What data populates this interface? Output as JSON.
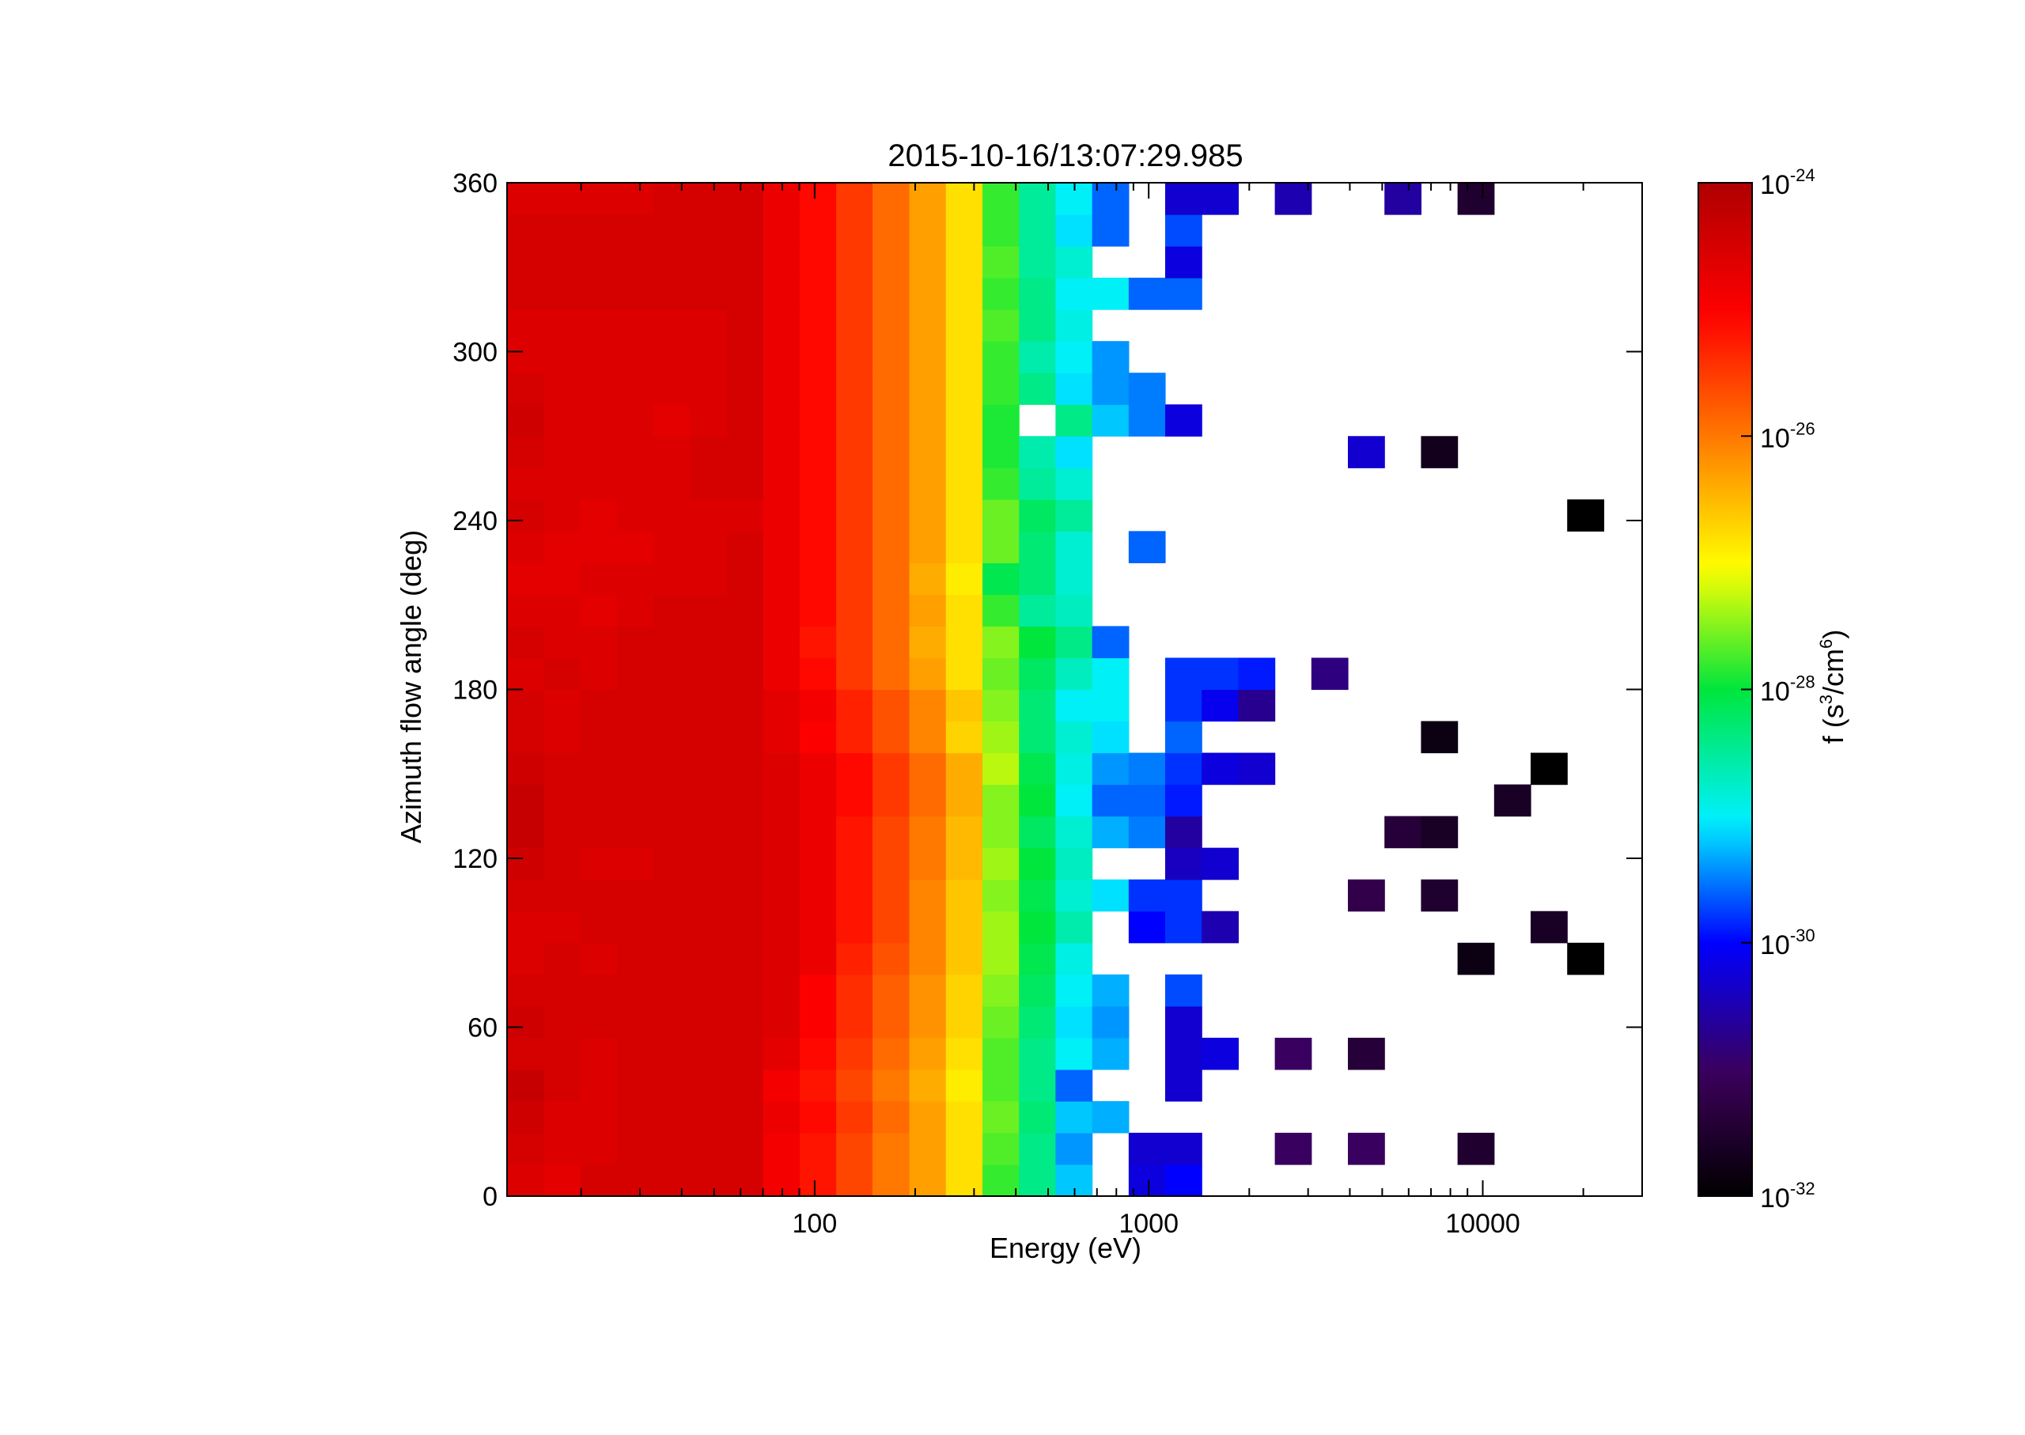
{
  "chart_data": {
    "type": "heatmap",
    "title": "2015-10-16/13:07:29.985",
    "xlabel": "Energy (eV)",
    "ylabel": "Azimuth flow angle (deg)",
    "xscale": "log",
    "xlim": [
      12,
      30000
    ],
    "ylim": [
      0,
      360
    ],
    "xticks": [
      {
        "value": 100,
        "label": "100"
      },
      {
        "value": 1000,
        "label": "1000"
      },
      {
        "value": 10000,
        "label": "10000"
      }
    ],
    "yticks": [
      {
        "value": 0,
        "label": "0"
      },
      {
        "value": 60,
        "label": "60"
      },
      {
        "value": 120,
        "label": "120"
      },
      {
        "value": 180,
        "label": "180"
      },
      {
        "value": 240,
        "label": "240"
      },
      {
        "value": 300,
        "label": "300"
      },
      {
        "value": 360,
        "label": "360"
      }
    ],
    "energy_bin_edges": [
      12,
      15.5,
      19.9,
      25.6,
      32.9,
      42.3,
      54.5,
      70.1,
      90.2,
      116,
      149,
      192,
      247,
      318,
      409,
      526,
      677,
      871,
      1120,
      1441,
      1854,
      2385,
      3068,
      3947,
      5078,
      6533,
      8404,
      10812,
      13909,
      17894,
      23021,
      30000
    ],
    "angle_bin_width": 11.25,
    "angle_bin_count": 32,
    "colorbar": {
      "label_main": "f (s",
      "label_exp1": "3",
      "label_mid": "/cm",
      "label_exp2": "6",
      "label_close": ")",
      "scale": "log",
      "range_log10": [
        -32,
        -24
      ],
      "ticks": [
        {
          "base": "10",
          "exp": "-24",
          "value": -24
        },
        {
          "base": "10",
          "exp": "-26",
          "value": -26
        },
        {
          "base": "10",
          "exp": "-28",
          "value": -28
        },
        {
          "base": "10",
          "exp": "-30",
          "value": -30
        },
        {
          "base": "10",
          "exp": "-32",
          "value": -32
        }
      ],
      "colormap": "rainbow"
    },
    "log10_f_rows_from_bottom": [
      [
        -24.6,
        -24.7,
        -24.5,
        -24.5,
        -24.5,
        -24.5,
        -24.5,
        -24.9,
        -25.2,
        -25.6,
        -26.0,
        -26.3,
        -26.8,
        -27.8,
        -28.4,
        -29.2,
        null,
        -30.2,
        -30.0,
        null,
        null,
        null,
        null,
        null,
        null,
        null,
        null,
        null,
        null,
        null,
        null
      ],
      [
        -24.5,
        -24.6,
        -24.6,
        -24.5,
        -24.5,
        -24.5,
        -24.5,
        -24.9,
        -25.2,
        -25.6,
        -26.0,
        -26.3,
        -26.8,
        -27.7,
        -28.4,
        -29.4,
        null,
        -30.3,
        -30.3,
        null,
        null,
        -31.0,
        null,
        -31.0,
        null,
        null,
        -31.5,
        null,
        null,
        null,
        null
      ],
      [
        -24.4,
        -24.6,
        -24.6,
        -24.5,
        -24.5,
        -24.5,
        -24.5,
        -24.8,
        -25.1,
        -25.5,
        -25.9,
        -26.3,
        -26.8,
        -27.6,
        -28.3,
        -29.2,
        -29.3,
        null,
        null,
        null,
        null,
        null,
        null,
        null,
        null,
        null,
        null,
        null,
        null,
        null,
        null
      ],
      [
        -24.3,
        -24.5,
        -24.6,
        -24.5,
        -24.5,
        -24.5,
        -24.5,
        -24.9,
        -25.2,
        -25.6,
        -26.0,
        -26.4,
        -26.9,
        -27.7,
        -28.4,
        -29.6,
        null,
        null,
        -30.3,
        null,
        null,
        null,
        null,
        null,
        null,
        null,
        null,
        null,
        null,
        null,
        null
      ],
      [
        -24.5,
        -24.5,
        -24.6,
        -24.5,
        -24.5,
        -24.5,
        -24.5,
        -24.7,
        -25.1,
        -25.5,
        -25.9,
        -26.3,
        -26.8,
        -27.7,
        -28.4,
        -29.0,
        -29.3,
        null,
        -30.3,
        -30.2,
        null,
        -31.0,
        null,
        -31.4,
        null,
        null,
        null,
        null,
        null,
        null,
        null
      ],
      [
        -24.4,
        -24.5,
        -24.5,
        -24.5,
        -24.5,
        -24.5,
        -24.5,
        -24.6,
        -25.0,
        -25.4,
        -25.8,
        -26.2,
        -26.7,
        -27.6,
        -28.3,
        -29.1,
        -29.4,
        null,
        -30.3,
        null,
        null,
        null,
        null,
        null,
        null,
        null,
        null,
        null,
        null,
        null,
        null
      ],
      [
        -24.5,
        -24.5,
        -24.5,
        -24.5,
        -24.5,
        -24.5,
        -24.5,
        -24.6,
        -25.0,
        -25.4,
        -25.8,
        -26.2,
        -26.7,
        -27.5,
        -28.2,
        -29.0,
        -29.3,
        null,
        -29.7,
        null,
        null,
        null,
        null,
        null,
        null,
        null,
        null,
        null,
        null,
        null,
        null
      ],
      [
        -24.6,
        -24.5,
        -24.6,
        -24.5,
        -24.5,
        -24.5,
        -24.5,
        -24.6,
        -24.8,
        -25.3,
        -25.7,
        -26.1,
        -26.6,
        -27.4,
        -28.1,
        -28.9,
        null,
        null,
        null,
        null,
        null,
        null,
        null,
        null,
        null,
        null,
        -31.8,
        null,
        null,
        -32.0,
        null
      ],
      [
        -24.6,
        -24.6,
        -24.5,
        -24.5,
        -24.5,
        -24.5,
        -24.5,
        -24.6,
        -24.8,
        -25.2,
        -25.6,
        -26.1,
        -26.6,
        -27.4,
        -28.0,
        -28.6,
        null,
        -30.0,
        -29.8,
        -30.5,
        null,
        null,
        null,
        null,
        null,
        null,
        null,
        null,
        -31.6,
        null,
        null
      ],
      [
        -24.5,
        -24.5,
        -24.5,
        -24.5,
        -24.5,
        -24.5,
        -24.5,
        -24.6,
        -24.8,
        -25.2,
        -25.6,
        -26.1,
        -26.6,
        -27.5,
        -28.1,
        -28.8,
        -29.1,
        -29.8,
        -29.8,
        null,
        null,
        null,
        null,
        -31.2,
        null,
        -31.5,
        null,
        null,
        null,
        null,
        null
      ],
      [
        -24.4,
        -24.5,
        -24.6,
        -24.6,
        -24.5,
        -24.5,
        -24.5,
        -24.6,
        -24.8,
        -25.2,
        -25.6,
        -26.0,
        -26.5,
        -27.4,
        -28.0,
        -28.7,
        null,
        null,
        -30.4,
        -30.3,
        null,
        null,
        null,
        null,
        null,
        null,
        null,
        null,
        null,
        null,
        null
      ],
      [
        -24.3,
        -24.5,
        -24.5,
        -24.5,
        -24.5,
        -24.5,
        -24.5,
        -24.6,
        -24.8,
        -25.2,
        -25.6,
        -26.0,
        -26.5,
        -27.5,
        -28.2,
        -28.8,
        -29.3,
        -29.5,
        -30.6,
        null,
        null,
        null,
        null,
        null,
        -31.4,
        -31.6,
        null,
        null,
        null,
        null,
        null
      ],
      [
        -24.3,
        -24.5,
        -24.5,
        -24.5,
        -24.5,
        -24.5,
        -24.5,
        -24.6,
        -24.8,
        -25.1,
        -25.5,
        -25.9,
        -26.4,
        -27.5,
        -28.0,
        -29.0,
        -29.6,
        -29.6,
        -29.9,
        null,
        null,
        null,
        null,
        null,
        null,
        null,
        null,
        -31.6,
        null,
        null,
        null
      ],
      [
        -24.4,
        -24.5,
        -24.5,
        -24.5,
        -24.5,
        -24.5,
        -24.5,
        -24.6,
        -24.8,
        -25.1,
        -25.5,
        -25.9,
        -26.4,
        -27.3,
        -28.1,
        -28.9,
        -29.4,
        -29.5,
        -29.8,
        -30.2,
        -30.3,
        null,
        null,
        null,
        null,
        null,
        null,
        null,
        -32.0,
        null,
        null
      ],
      [
        -24.5,
        -24.6,
        -24.5,
        -24.5,
        -24.5,
        -24.5,
        -24.5,
        -24.7,
        -25.0,
        -25.3,
        -25.7,
        -26.1,
        -26.7,
        -27.4,
        -28.3,
        -28.8,
        -29.1,
        null,
        -29.6,
        null,
        null,
        null,
        null,
        null,
        null,
        -31.8,
        null,
        null,
        null,
        null,
        null
      ],
      [
        -24.5,
        -24.6,
        -24.5,
        -24.5,
        -24.5,
        -24.5,
        -24.5,
        -24.7,
        -24.9,
        -25.3,
        -25.7,
        -26.1,
        -26.6,
        -27.5,
        -28.3,
        -29.0,
        -29.0,
        null,
        -29.8,
        -30.1,
        -30.7,
        null,
        null,
        null,
        null,
        null,
        null,
        null,
        null,
        null,
        null
      ],
      [
        -24.6,
        -24.5,
        -24.6,
        -24.5,
        -24.5,
        -24.5,
        -24.5,
        -24.8,
        -25.1,
        -25.5,
        -25.9,
        -26.3,
        -26.8,
        -27.6,
        -28.2,
        -28.7,
        -29.0,
        null,
        -29.8,
        -29.8,
        -29.9,
        null,
        -30.8,
        null,
        null,
        null,
        null,
        null,
        null,
        null,
        null
      ],
      [
        -24.5,
        -24.6,
        -24.6,
        -24.5,
        -24.5,
        -24.5,
        -24.5,
        -24.8,
        -25.2,
        -25.5,
        -25.9,
        -26.4,
        -26.8,
        -27.5,
        -28.0,
        -28.4,
        -29.6,
        null,
        null,
        null,
        null,
        null,
        null,
        null,
        null,
        null,
        null,
        null,
        null,
        null,
        null
      ],
      [
        -24.6,
        -24.6,
        -24.7,
        -24.6,
        -24.5,
        -24.5,
        -24.5,
        -24.8,
        -25.1,
        -25.5,
        -25.9,
        -26.3,
        -26.8,
        -27.8,
        -28.5,
        -28.7,
        null,
        null,
        null,
        null,
        null,
        null,
        null,
        null,
        null,
        null,
        null,
        null,
        null,
        null,
        null
      ],
      [
        -24.7,
        -24.7,
        -24.6,
        -24.6,
        -24.6,
        -24.6,
        -24.5,
        -24.8,
        -25.1,
        -25.5,
        -25.9,
        -26.4,
        -26.9,
        -28.1,
        -28.3,
        -28.8,
        null,
        null,
        null,
        null,
        null,
        null,
        null,
        null,
        null,
        null,
        null,
        null,
        null,
        null,
        null
      ],
      [
        -24.6,
        -24.7,
        -24.7,
        -24.7,
        -24.6,
        -24.6,
        -24.5,
        -24.8,
        -25.1,
        -25.5,
        -25.9,
        -26.3,
        -26.8,
        -27.6,
        -28.3,
        -28.8,
        null,
        -29.6,
        null,
        null,
        null,
        null,
        null,
        null,
        null,
        null,
        null,
        null,
        null,
        null,
        null
      ],
      [
        -24.5,
        -24.6,
        -24.7,
        -24.6,
        -24.6,
        -24.6,
        -24.6,
        -24.8,
        -25.1,
        -25.5,
        -25.9,
        -26.3,
        -26.8,
        -27.6,
        -28.2,
        -28.5,
        null,
        null,
        null,
        null,
        null,
        null,
        null,
        null,
        null,
        null,
        null,
        null,
        null,
        -32.0,
        null
      ],
      [
        -24.6,
        -24.6,
        -24.6,
        -24.6,
        -24.6,
        -24.5,
        -24.5,
        -24.8,
        -25.1,
        -25.5,
        -25.9,
        -26.3,
        -26.8,
        -27.8,
        -28.5,
        -28.8,
        null,
        null,
        null,
        null,
        null,
        null,
        null,
        null,
        null,
        null,
        null,
        null,
        null,
        null,
        null
      ],
      [
        -24.5,
        -24.6,
        -24.6,
        -24.6,
        -24.6,
        -24.5,
        -24.5,
        -24.8,
        -25.1,
        -25.5,
        -25.9,
        -26.3,
        -26.8,
        -27.9,
        -28.6,
        -29.1,
        null,
        null,
        null,
        null,
        null,
        null,
        null,
        -30.3,
        null,
        -31.7,
        null,
        null,
        null,
        null,
        null
      ],
      [
        -24.4,
        -24.6,
        -24.6,
        -24.6,
        -24.7,
        -24.6,
        -24.5,
        -24.8,
        -25.1,
        -25.5,
        -25.9,
        -26.3,
        -26.8,
        -27.9,
        null,
        -28.4,
        -29.2,
        -29.5,
        -30.2,
        null,
        null,
        null,
        null,
        null,
        null,
        null,
        null,
        null,
        null,
        null,
        null
      ],
      [
        -24.5,
        -24.6,
        -24.6,
        -24.6,
        -24.6,
        -24.6,
        -24.5,
        -24.8,
        -25.1,
        -25.5,
        -25.9,
        -26.3,
        -26.8,
        -27.8,
        -28.4,
        -29.1,
        -29.4,
        -29.5,
        null,
        null,
        null,
        null,
        null,
        null,
        null,
        null,
        null,
        null,
        null,
        null,
        null
      ],
      [
        -24.6,
        -24.6,
        -24.6,
        -24.6,
        -24.6,
        -24.6,
        -24.5,
        -24.8,
        -25.1,
        -25.5,
        -25.9,
        -26.3,
        -26.8,
        -27.8,
        -28.6,
        -29.0,
        -29.4,
        null,
        null,
        null,
        null,
        null,
        null,
        null,
        null,
        null,
        null,
        null,
        null,
        null,
        null
      ],
      [
        -24.6,
        -24.6,
        -24.6,
        -24.6,
        -24.6,
        -24.6,
        -24.5,
        -24.8,
        -25.1,
        -25.5,
        -25.9,
        -26.3,
        -26.8,
        -27.7,
        -28.4,
        -28.9,
        null,
        null,
        null,
        null,
        null,
        null,
        null,
        null,
        null,
        null,
        null,
        null,
        null,
        null,
        null
      ],
      [
        -24.5,
        -24.5,
        -24.5,
        -24.5,
        -24.5,
        -24.5,
        -24.5,
        -24.8,
        -25.1,
        -25.5,
        -25.9,
        -26.3,
        -26.8,
        -27.8,
        -28.4,
        -29.0,
        -29.0,
        -29.6,
        -29.6,
        null,
        null,
        null,
        null,
        null,
        null,
        null,
        null,
        null,
        null,
        null,
        null
      ],
      [
        -24.5,
        -24.5,
        -24.5,
        -24.5,
        -24.5,
        -24.5,
        -24.5,
        -24.8,
        -25.1,
        -25.5,
        -25.9,
        -26.3,
        -26.8,
        -27.7,
        -28.5,
        -28.8,
        null,
        null,
        -30.2,
        null,
        null,
        null,
        null,
        null,
        null,
        null,
        null,
        null,
        null,
        null,
        null
      ],
      [
        -24.5,
        -24.5,
        -24.5,
        -24.5,
        -24.5,
        -24.5,
        -24.5,
        -24.8,
        -25.1,
        -25.5,
        -25.9,
        -26.3,
        -26.8,
        -27.8,
        -28.5,
        -29.1,
        -29.6,
        null,
        -29.7,
        null,
        null,
        null,
        null,
        null,
        null,
        null,
        null,
        null,
        null,
        null,
        null
      ],
      [
        -24.6,
        -24.6,
        -24.6,
        -24.6,
        -24.5,
        -24.5,
        -24.5,
        -24.8,
        -25.1,
        -25.5,
        -25.9,
        -26.3,
        -26.8,
        -27.8,
        -28.5,
        -29.0,
        -29.6,
        null,
        -30.3,
        -30.3,
        null,
        -30.5,
        null,
        null,
        -30.6,
        null,
        -31.5,
        null,
        null,
        null,
        null
      ]
    ]
  }
}
